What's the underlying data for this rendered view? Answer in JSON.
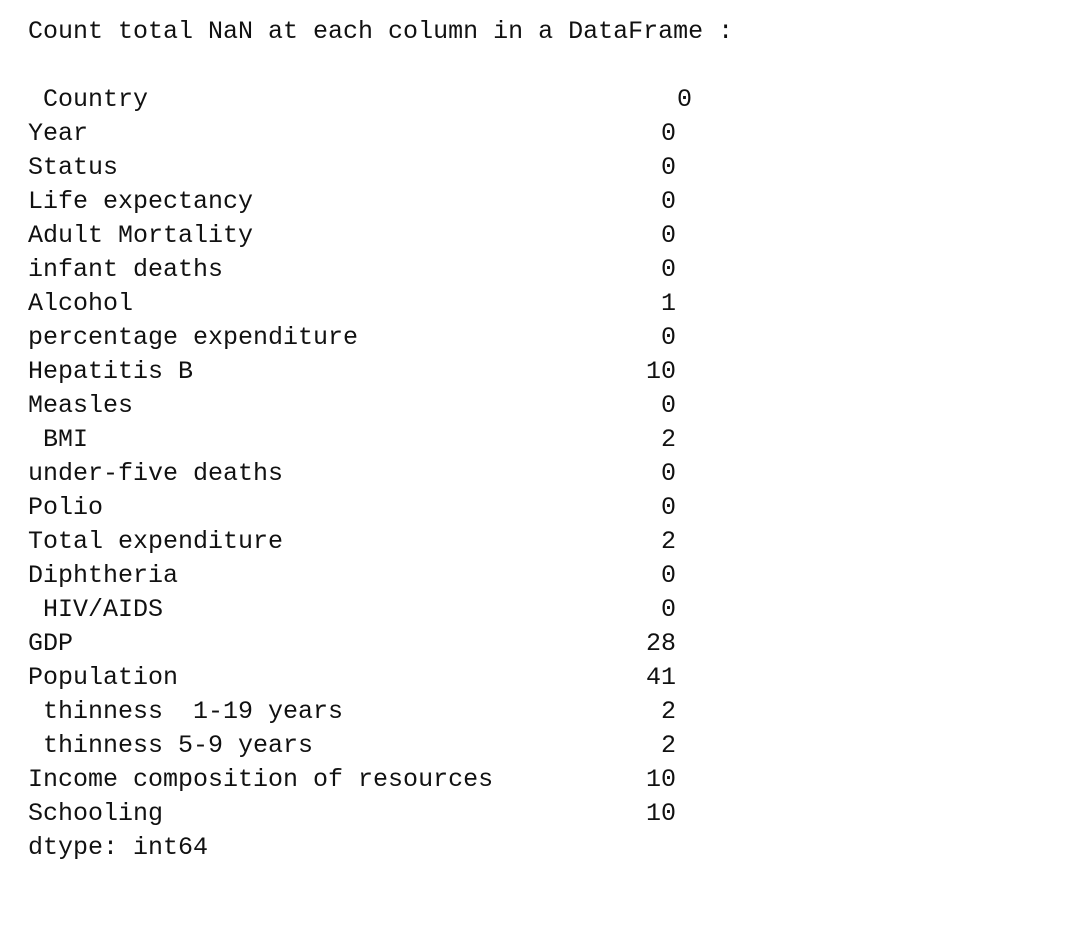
{
  "header": "Count total NaN at each column in a DataFrame :",
  "rows": [
    {
      "label": " Country",
      "value": "0"
    },
    {
      "label": "Year",
      "value": "0"
    },
    {
      "label": "Status",
      "value": "0"
    },
    {
      "label": "Life expectancy",
      "value": "0"
    },
    {
      "label": "Adult Mortality",
      "value": "0"
    },
    {
      "label": "infant deaths",
      "value": "0"
    },
    {
      "label": "Alcohol",
      "value": "1"
    },
    {
      "label": "percentage expenditure",
      "value": "0"
    },
    {
      "label": "Hepatitis B",
      "value": "10"
    },
    {
      "label": "Measles",
      "value": "0"
    },
    {
      "label": " BMI",
      "value": "2"
    },
    {
      "label": "under-five deaths",
      "value": "0"
    },
    {
      "label": "Polio",
      "value": "0"
    },
    {
      "label": "Total expenditure",
      "value": "2"
    },
    {
      "label": "Diphtheria",
      "value": "0"
    },
    {
      "label": " HIV/AIDS",
      "value": "0"
    },
    {
      "label": "GDP",
      "value": "28"
    },
    {
      "label": "Population",
      "value": "41"
    },
    {
      "label": " thinness  1-19 years",
      "value": "2"
    },
    {
      "label": " thinness 5-9 years",
      "value": "2"
    },
    {
      "label": "Income composition of resources",
      "value": "10"
    },
    {
      "label": "Schooling",
      "value": "10"
    }
  ],
  "footer": "dtype: int64"
}
